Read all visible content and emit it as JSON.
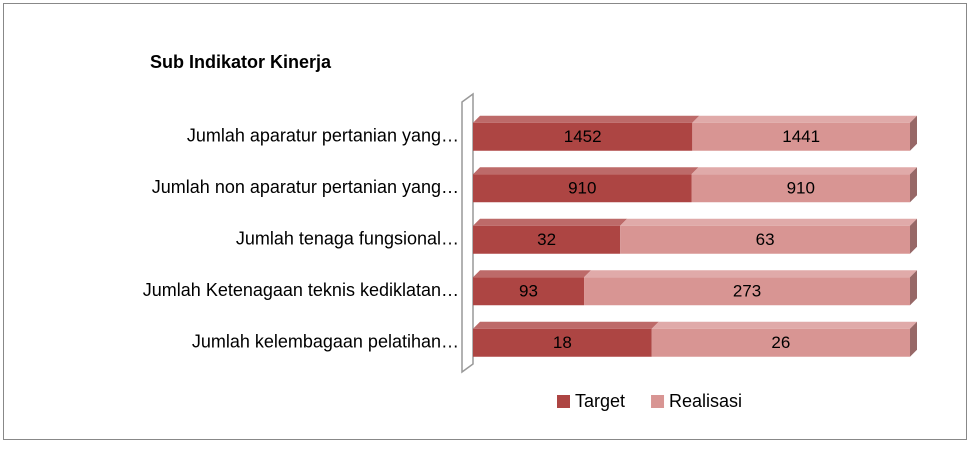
{
  "chart_data": {
    "type": "bar",
    "orientation": "horizontal",
    "stacked": "percent",
    "title": "Sub Indikator Kinerja",
    "categories": [
      "Jumlah aparatur pertanian yang…",
      "Jumlah non aparatur pertanian yang…",
      "Jumlah tenaga fungsional…",
      "Jumlah Ketenagaan teknis kediklatan…",
      "Jumlah kelembagaan pelatihan…"
    ],
    "series": [
      {
        "name": "Target",
        "color": "#ad4543",
        "values": [
          1452,
          910,
          32,
          93,
          18
        ]
      },
      {
        "name": "Realisasi",
        "color": "#d89593",
        "values": [
          1441,
          910,
          63,
          273,
          26
        ]
      }
    ],
    "legend": "bottom"
  }
}
